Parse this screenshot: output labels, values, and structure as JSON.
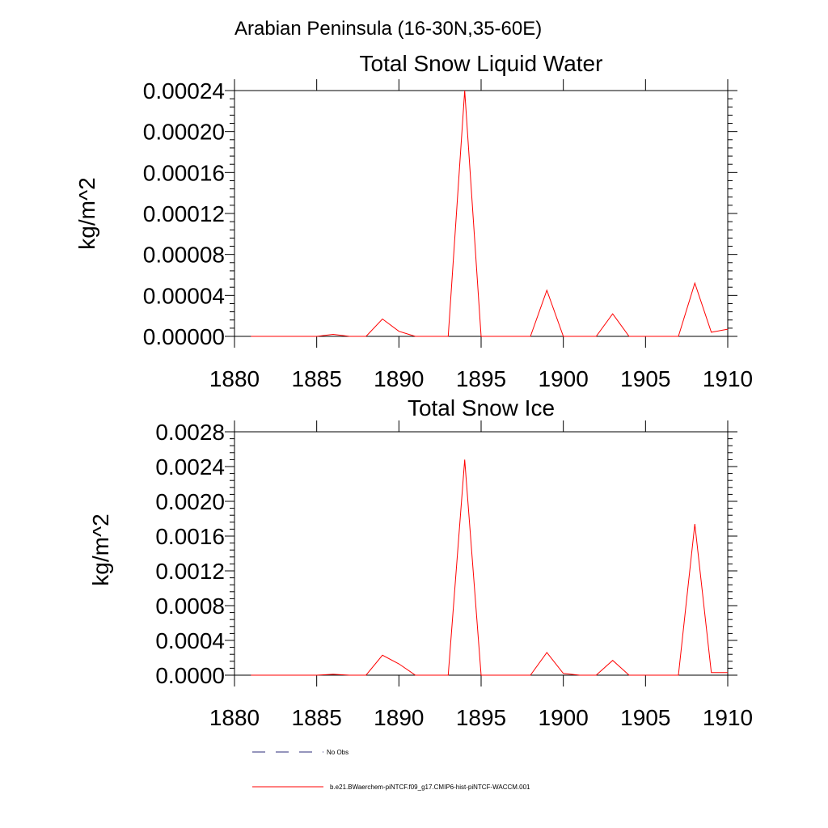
{
  "figure": {
    "title": "Arabian Peninsula (16-30N,35-60E)"
  },
  "legend": [
    {
      "label": "No Obs",
      "color": "#2b2b7a",
      "style": "dashed"
    },
    {
      "label": "b.e21.BWaerchem-piNTCF.f09_g17.CMIP6-hist-piNTCF-WACCM.001",
      "color": "#ff0000",
      "style": "solid"
    }
  ],
  "chart_data": [
    {
      "type": "line",
      "title": "Total Snow Liquid Water",
      "xlabel": "",
      "ylabel": "kg/m^2",
      "xlim": [
        1880,
        1910
      ],
      "ylim": [
        0,
        0.00024
      ],
      "xticks": [
        1880,
        1885,
        1890,
        1895,
        1900,
        1905,
        1910
      ],
      "xtick_labels": [
        "1880",
        "1885",
        "1890",
        "1895",
        "1900",
        "1905",
        "1910"
      ],
      "yticks": [
        0,
        4e-05,
        8e-05,
        0.00012,
        0.00016,
        0.0002,
        0.00024
      ],
      "ytick_labels": [
        "0.00000",
        "0.00004",
        "0.00008",
        "0.00012",
        "0.00016",
        "0.00020",
        "0.00024"
      ],
      "grid": false,
      "series": [
        {
          "name": "b.e21.BWaerchem-piNTCF.f09_g17.CMIP6-hist-piNTCF-WACCM.001",
          "color": "#ff0000",
          "x": [
            1881,
            1882,
            1883,
            1884,
            1885,
            1886,
            1887,
            1888,
            1889,
            1890,
            1891,
            1892,
            1893,
            1894,
            1895,
            1896,
            1897,
            1898,
            1899,
            1900,
            1901,
            1902,
            1903,
            1904,
            1905,
            1906,
            1907,
            1908,
            1909,
            1910
          ],
          "y": [
            0,
            0,
            0,
            0,
            0,
            2e-06,
            0,
            0,
            1.7e-05,
            5e-06,
            0,
            0,
            0,
            0.00024,
            0,
            0,
            0,
            0,
            4.5e-05,
            0,
            0,
            0,
            2.2e-05,
            0,
            0,
            0,
            0,
            5.2e-05,
            4e-06,
            7e-06
          ]
        }
      ]
    },
    {
      "type": "line",
      "title": "Total Snow Ice",
      "xlabel": "",
      "ylabel": "kg/m^2",
      "xlim": [
        1880,
        1910
      ],
      "ylim": [
        0,
        0.0028
      ],
      "xticks": [
        1880,
        1885,
        1890,
        1895,
        1900,
        1905,
        1910
      ],
      "xtick_labels": [
        "1880",
        "1885",
        "1890",
        "1895",
        "1900",
        "1905",
        "1910"
      ],
      "yticks": [
        0,
        0.0004,
        0.0008,
        0.0012,
        0.0016,
        0.002,
        0.0024,
        0.0028
      ],
      "ytick_labels": [
        "0.0000",
        "0.0004",
        "0.0008",
        "0.0012",
        "0.0016",
        "0.0020",
        "0.0024",
        "0.0028"
      ],
      "grid": false,
      "series": [
        {
          "name": "b.e21.BWaerchem-piNTCF.f09_g17.CMIP6-hist-piNTCF-WACCM.001",
          "color": "#ff0000",
          "x": [
            1881,
            1882,
            1883,
            1884,
            1885,
            1886,
            1887,
            1888,
            1889,
            1890,
            1891,
            1892,
            1893,
            1894,
            1895,
            1896,
            1897,
            1898,
            1899,
            1900,
            1901,
            1902,
            1903,
            1904,
            1905,
            1906,
            1907,
            1908,
            1909,
            1910
          ],
          "y": [
            0,
            0,
            0,
            0,
            0,
            1e-05,
            0,
            0,
            0.00023,
            0.00013,
            0,
            0,
            0,
            0.00248,
            0,
            0,
            0,
            0,
            0.00026,
            2e-05,
            0,
            0,
            0.00017,
            0,
            0,
            0,
            0,
            0.00174,
            3e-05,
            3e-05
          ]
        }
      ]
    }
  ]
}
